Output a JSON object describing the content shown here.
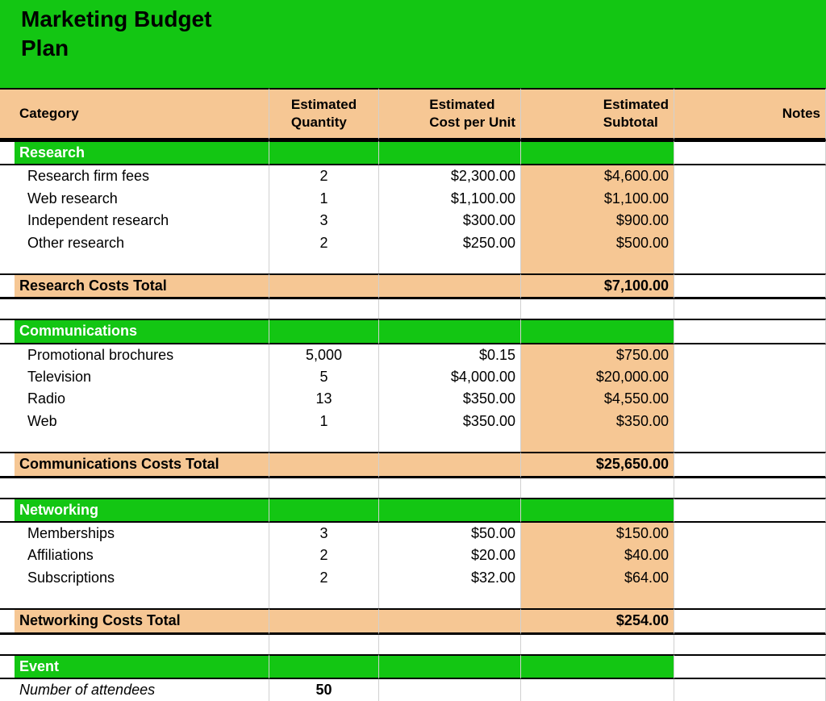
{
  "title": "Marketing Budget Plan",
  "columns": {
    "category": "Category",
    "quantity": "Estimated Quantity",
    "costPerUnit": "Estimated Cost per Unit",
    "subtotal": "Estimated Subtotal",
    "notes": "Notes"
  },
  "colors": {
    "green": "#13c613",
    "peach": "#f6c794",
    "white": "#ffffff",
    "black": "#000000"
  },
  "sections": [
    {
      "name": "Research",
      "rows": [
        {
          "label": "Research firm fees",
          "qty": "2",
          "unit": "$2,300.00",
          "sub": "$4,600.00"
        },
        {
          "label": "Web research",
          "qty": "1",
          "unit": "$1,100.00",
          "sub": "$1,100.00"
        },
        {
          "label": "Independent research",
          "qty": "3",
          "unit": "$300.00",
          "sub": "$900.00"
        },
        {
          "label": "Other research",
          "qty": "2",
          "unit": "$250.00",
          "sub": "$500.00"
        }
      ],
      "totalLabel": "Research Costs Total",
      "totalValue": "$7,100.00"
    },
    {
      "name": "Communications",
      "rows": [
        {
          "label": "Promotional brochures",
          "qty": "5,000",
          "unit": "$0.15",
          "sub": "$750.00"
        },
        {
          "label": "Television",
          "qty": "5",
          "unit": "$4,000.00",
          "sub": "$20,000.00"
        },
        {
          "label": "Radio",
          "qty": "13",
          "unit": "$350.00",
          "sub": "$4,550.00"
        },
        {
          "label": "Web",
          "qty": "1",
          "unit": "$350.00",
          "sub": "$350.00"
        }
      ],
      "totalLabel": "Communications Costs Total",
      "totalValue": "$25,650.00"
    },
    {
      "name": "Networking",
      "rows": [
        {
          "label": "Memberships",
          "qty": "3",
          "unit": "$50.00",
          "sub": "$150.00"
        },
        {
          "label": "Affiliations",
          "qty": "2",
          "unit": "$20.00",
          "sub": "$40.00"
        },
        {
          "label": "Subscriptions",
          "qty": "2",
          "unit": "$32.00",
          "sub": "$64.00"
        }
      ],
      "totalLabel": "Networking Costs Total",
      "totalValue": "$254.00"
    }
  ],
  "eventSection": {
    "name": "Event",
    "attendeesLabel": "Number of attendees",
    "attendeesValue": "50"
  }
}
